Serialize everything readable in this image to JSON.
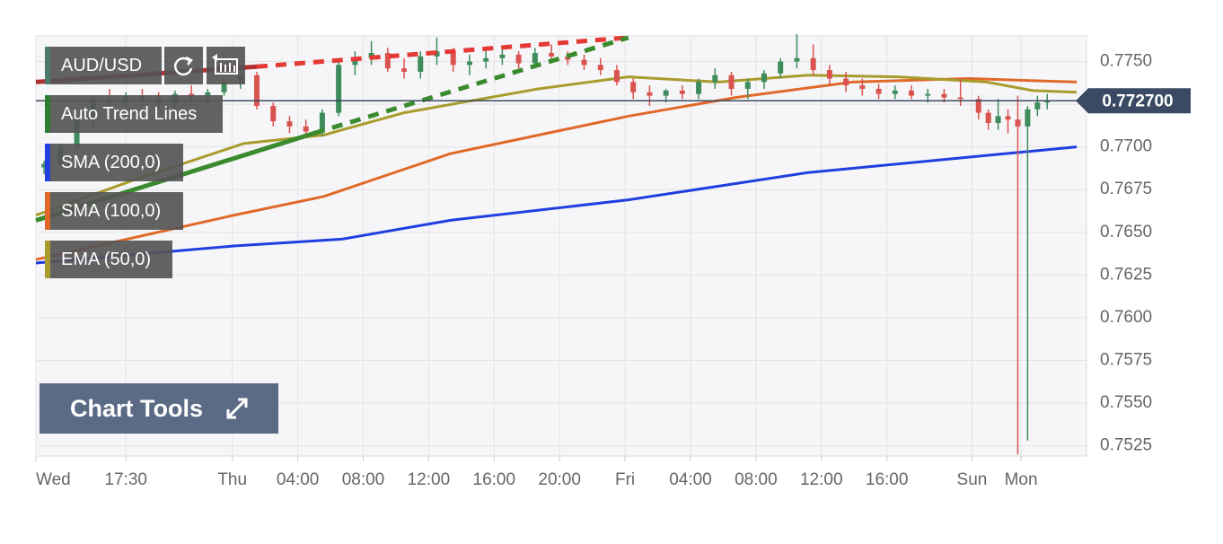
{
  "chart_data": {
    "type": "candlestick",
    "symbol": "AUD/USD",
    "xlim": [
      12,
      76.2
    ],
    "xticks": [
      {
        "value": 12,
        "label": "Wed"
      },
      {
        "value": 17.5,
        "label": "17:30"
      },
      {
        "value": 24,
        "label": "Thu"
      },
      {
        "value": 28,
        "label": "04:00"
      },
      {
        "value": 32,
        "label": "08:00"
      },
      {
        "value": 36,
        "label": "12:00"
      },
      {
        "value": 40,
        "label": "16:00"
      },
      {
        "value": 44,
        "label": "20:00"
      },
      {
        "value": 48,
        "label": "Fri"
      },
      {
        "value": 52,
        "label": "04:00"
      },
      {
        "value": 56,
        "label": "08:00"
      },
      {
        "value": 60,
        "label": "12:00"
      },
      {
        "value": 64,
        "label": "16:00"
      },
      {
        "value": 69.2,
        "label": "Sun"
      },
      {
        "value": 72.2,
        "label": "Mon"
      }
    ],
    "ylim": [
      0.7519,
      0.7765
    ],
    "yticks": [
      {
        "value": 0.7525,
        "label": "0.7525"
      },
      {
        "value": 0.755,
        "label": "0.7550"
      },
      {
        "value": 0.7575,
        "label": "0.7575"
      },
      {
        "value": 0.76,
        "label": "0.7600"
      },
      {
        "value": 0.7625,
        "label": "0.7625"
      },
      {
        "value": 0.765,
        "label": "0.7650"
      },
      {
        "value": 0.7675,
        "label": "0.7675"
      },
      {
        "value": 0.77,
        "label": "0.7700"
      },
      {
        "value": 0.7725,
        "label": "0.7725"
      },
      {
        "value": 0.775,
        "label": "0.7750"
      }
    ],
    "grid": true,
    "up_color": "#3e8b5c",
    "down_color": "#d9534f",
    "last_price": {
      "value": 0.7727,
      "label": "0.772700"
    },
    "x": [
      12.5,
      13.5,
      14.5,
      15.5,
      16.5,
      17.5,
      18.5,
      19.5,
      20.5,
      21.5,
      22.5,
      23.5,
      24.5,
      25.5,
      26.5,
      27.5,
      28.5,
      29.5,
      30.5,
      31.5,
      32.5,
      33.5,
      34.5,
      35.5,
      36.5,
      37.5,
      38.5,
      39.5,
      40.5,
      41.5,
      42.5,
      43.5,
      44.5,
      45.5,
      46.5,
      47.5,
      48.5,
      49.5,
      50.5,
      51.5,
      52.5,
      53.5,
      54.5,
      55.5,
      56.5,
      57.5,
      58.5,
      59.5,
      60.5,
      61.5,
      62.5,
      63.5,
      64.5,
      65.5,
      66.5,
      67.5,
      68.5,
      69.6,
      70.2,
      70.8,
      71.4,
      72.0,
      72.6,
      73.2,
      73.8
    ],
    "open": [
      0.7688,
      0.769,
      0.77,
      0.7716,
      0.7728,
      0.7726,
      0.773,
      0.7728,
      0.7725,
      0.7731,
      0.7729,
      0.7732,
      0.7738,
      0.7742,
      0.7724,
      0.7715,
      0.7712,
      0.7709,
      0.772,
      0.7748,
      0.7752,
      0.7755,
      0.7746,
      0.7744,
      0.7753,
      0.7756,
      0.7748,
      0.775,
      0.7752,
      0.7754,
      0.7749,
      0.7755,
      0.7753,
      0.7751,
      0.7748,
      0.7745,
      0.7738,
      0.7732,
      0.773,
      0.7733,
      0.7731,
      0.7738,
      0.7742,
      0.7734,
      0.7738,
      0.7743,
      0.775,
      0.7752,
      0.7745,
      0.774,
      0.7736,
      0.7734,
      0.7731,
      0.7733,
      0.773,
      0.7731,
      0.7729,
      0.7728,
      0.772,
      0.7714,
      0.7718,
      0.7716,
      0.7712,
      0.7722,
      0.7726
    ],
    "high": [
      0.7692,
      0.7702,
      0.7718,
      0.773,
      0.7734,
      0.7732,
      0.7734,
      0.7732,
      0.7733,
      0.7736,
      0.7734,
      0.774,
      0.7746,
      0.7744,
      0.7726,
      0.7718,
      0.7716,
      0.7722,
      0.7752,
      0.7756,
      0.7762,
      0.7758,
      0.7752,
      0.7756,
      0.7764,
      0.7758,
      0.7754,
      0.7756,
      0.7758,
      0.7756,
      0.7758,
      0.776,
      0.7756,
      0.7754,
      0.7752,
      0.7748,
      0.774,
      0.7736,
      0.7734,
      0.7736,
      0.774,
      0.7746,
      0.7744,
      0.774,
      0.7745,
      0.7752,
      0.7766,
      0.776,
      0.7748,
      0.7744,
      0.774,
      0.7737,
      0.7736,
      0.7736,
      0.7734,
      0.7734,
      0.774,
      0.773,
      0.7722,
      0.7728,
      0.7722,
      0.773,
      0.7724,
      0.773,
      0.7731
    ],
    "low": [
      0.7684,
      0.7688,
      0.7698,
      0.7712,
      0.7722,
      0.772,
      0.7724,
      0.7722,
      0.7721,
      0.7726,
      0.7724,
      0.773,
      0.7734,
      0.7722,
      0.7712,
      0.7708,
      0.7706,
      0.7706,
      0.7718,
      0.7742,
      0.7748,
      0.7744,
      0.774,
      0.774,
      0.7748,
      0.7744,
      0.7742,
      0.7746,
      0.7748,
      0.7746,
      0.7746,
      0.775,
      0.7748,
      0.7745,
      0.7742,
      0.7736,
      0.7728,
      0.7724,
      0.7726,
      0.7728,
      0.7728,
      0.7734,
      0.773,
      0.7728,
      0.7734,
      0.774,
      0.7746,
      0.7742,
      0.7736,
      0.7732,
      0.773,
      0.7728,
      0.7728,
      0.7728,
      0.7726,
      0.7726,
      0.7724,
      0.7716,
      0.771,
      0.771,
      0.7708,
      0.752,
      0.7528,
      0.7718,
      0.7722
    ],
    "close": [
      0.769,
      0.77,
      0.7716,
      0.7728,
      0.7726,
      0.773,
      0.7728,
      0.7725,
      0.7731,
      0.7729,
      0.7732,
      0.7738,
      0.7742,
      0.7724,
      0.7715,
      0.7712,
      0.7709,
      0.772,
      0.7748,
      0.7752,
      0.7755,
      0.7746,
      0.7744,
      0.7753,
      0.7756,
      0.7748,
      0.775,
      0.7752,
      0.7754,
      0.7749,
      0.7755,
      0.7753,
      0.7751,
      0.7748,
      0.7745,
      0.7738,
      0.7732,
      0.773,
      0.7733,
      0.7731,
      0.7738,
      0.7742,
      0.7734,
      0.7738,
      0.7743,
      0.775,
      0.7752,
      0.7745,
      0.774,
      0.7736,
      0.7734,
      0.7731,
      0.7733,
      0.773,
      0.7731,
      0.7729,
      0.7728,
      0.772,
      0.7714,
      0.7718,
      0.7716,
      0.7712,
      0.7722,
      0.7726,
      0.7727
    ],
    "trend_lines": {
      "name": "Auto Trend Lines",
      "color": "#2e7d32",
      "lines": [
        {
          "color": "#b03030",
          "dashed": false,
          "x": [
            12,
            25.5
          ],
          "values": [
            0.7738,
            0.7747
          ]
        },
        {
          "color": "#e53935",
          "dashed": true,
          "x": [
            25.5,
            48.2
          ],
          "values": [
            0.7747,
            0.7764
          ]
        },
        {
          "color": "#3a8a2e",
          "dashed": false,
          "x": [
            12,
            29
          ],
          "values": [
            0.7657,
            0.7708
          ]
        },
        {
          "color": "#3a8a2e",
          "dashed": true,
          "x": [
            29,
            48.2
          ],
          "values": [
            0.7708,
            0.7764
          ]
        }
      ]
    },
    "series": [
      {
        "name": "SMA (200,0)",
        "color": "#1f3fe0",
        "x": [
          12,
          24.1,
          30.7,
          37.3,
          48.2,
          59.2,
          70.1,
          75.6
        ],
        "values": [
          0.7632,
          0.7642,
          0.7646,
          0.7657,
          0.7669,
          0.7685,
          0.7695,
          0.77
        ]
      },
      {
        "name": "SMA (100,0)",
        "color": "#e0692a",
        "x": [
          12,
          24.1,
          29.6,
          37.3,
          48.2,
          54.8,
          61.9,
          69,
          75.6
        ],
        "values": [
          0.7634,
          0.766,
          0.7671,
          0.7696,
          0.7718,
          0.7729,
          0.7738,
          0.774,
          0.7738
        ]
      },
      {
        "name": "EMA (50,0)",
        "color": "#a89c2c",
        "x": [
          12,
          18.1,
          24.7,
          29.6,
          34.5,
          42.7,
          48.2,
          53.7,
          59.2,
          64.7,
          70.1,
          72.9,
          75.6
        ],
        "values": [
          0.766,
          0.7681,
          0.7702,
          0.7707,
          0.772,
          0.7734,
          0.7741,
          0.7738,
          0.7742,
          0.7741,
          0.7738,
          0.7733,
          0.7732
        ]
      }
    ]
  },
  "ui": {
    "chart_tools": "Chart Tools"
  }
}
